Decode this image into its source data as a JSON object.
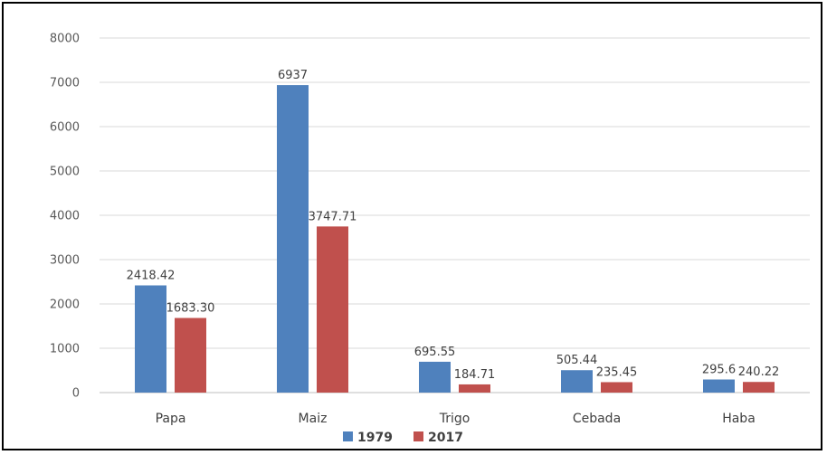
{
  "chart_data": {
    "type": "bar",
    "title": "",
    "xlabel": "",
    "ylabel": "",
    "categories": [
      "Papa",
      "Maiz",
      "Trigo",
      "Cebada",
      "Haba"
    ],
    "ylim": [
      0,
      8000
    ],
    "yticks": [
      0,
      1000,
      2000,
      3000,
      4000,
      5000,
      6000,
      7000,
      8000
    ],
    "grid": true,
    "legend_position": "bottom",
    "series": [
      {
        "name": "1979",
        "color": "#4F81BD",
        "values": [
          2418.42,
          6937,
          695.55,
          505.44,
          295.6
        ],
        "labels": [
          "2418.42",
          "6937",
          "695.55",
          "505.44",
          "295.6"
        ]
      },
      {
        "name": "2017",
        "color": "#C0504D",
        "values": [
          1683.3,
          3747.71,
          184.71,
          235.45,
          240.22
        ],
        "labels": [
          "1683.30",
          "3747.71",
          "184.71",
          "235.45",
          "240.22"
        ]
      }
    ]
  }
}
